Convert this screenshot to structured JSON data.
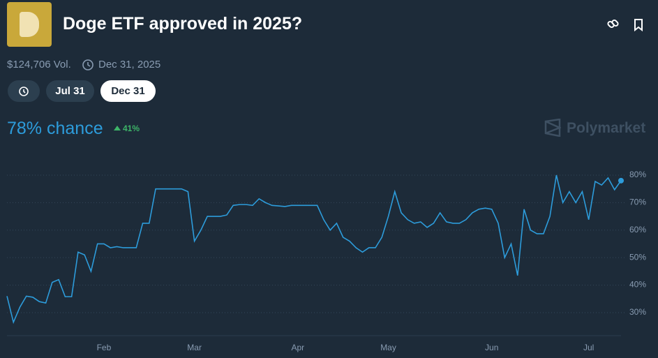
{
  "header": {
    "title": "Doge ETF approved in 2025?",
    "volume": "$124,706 Vol.",
    "end_date": "Dec 31, 2025"
  },
  "tabs": [
    "Jul 31",
    "Dec 31"
  ],
  "chance": {
    "label": "78% chance",
    "change": "41%"
  },
  "brand": "Polymarket",
  "chart_data": {
    "type": "line",
    "categories": [
      null,
      null,
      null,
      null,
      null,
      null,
      null,
      null,
      null,
      null,
      null,
      null,
      null,
      null,
      null,
      "Feb",
      null,
      null,
      null,
      null,
      null,
      null,
      null,
      null,
      null,
      null,
      null,
      null,
      null,
      "Mar",
      null,
      null,
      null,
      null,
      null,
      null,
      null,
      null,
      null,
      null,
      null,
      null,
      null,
      null,
      null,
      "Apr",
      null,
      null,
      null,
      null,
      null,
      null,
      null,
      null,
      null,
      null,
      null,
      null,
      null,
      "May",
      null,
      null,
      null,
      null,
      null,
      null,
      null,
      null,
      null,
      null,
      null,
      null,
      null,
      null,
      null,
      "Jun",
      null,
      null,
      null,
      null,
      null,
      null,
      null,
      null,
      null,
      null,
      null,
      null,
      null,
      null,
      "Jul",
      null,
      null,
      null,
      null,
      null
    ],
    "series": [
      {
        "color": "#2d9cdb",
        "values": [
          36,
          26.5,
          32,
          36,
          35.6,
          34,
          33.5,
          41,
          42,
          35.8,
          35.8,
          52,
          51,
          45,
          55,
          55,
          53.6,
          54,
          53.6,
          53.6,
          53.6,
          62.5,
          62.5,
          75,
          75,
          75,
          75,
          75,
          74,
          56,
          60,
          65,
          65,
          65,
          65.5,
          69,
          69.3,
          69.3,
          69,
          71.4,
          70,
          69,
          68.8,
          68.6,
          69,
          69,
          69,
          69,
          69,
          63.8,
          60,
          62.5,
          57.4,
          56,
          53.6,
          52,
          53.6,
          53.6,
          57.4,
          65,
          74,
          66.3,
          63.8,
          62.5,
          63,
          61,
          62.5,
          66.3,
          63,
          62.5,
          62.5,
          63.8,
          66.3,
          67.6,
          68,
          67.6,
          62.5,
          50,
          55,
          43.5,
          67.6,
          60,
          58.7,
          58.7,
          65,
          80,
          70,
          74,
          70,
          74,
          63.8,
          77.7,
          76.4,
          79,
          74.7,
          78
        ]
      }
    ],
    "ylim": [
      22,
      89
    ],
    "yticks": [
      {
        "value": 30,
        "label": "30%"
      },
      {
        "value": 40,
        "label": "40%"
      },
      {
        "value": 50,
        "label": "50%"
      },
      {
        "value": 60,
        "label": "60%"
      },
      {
        "value": 70,
        "label": "70%"
      },
      {
        "value": 80,
        "label": "80%"
      }
    ],
    "grid": true
  }
}
